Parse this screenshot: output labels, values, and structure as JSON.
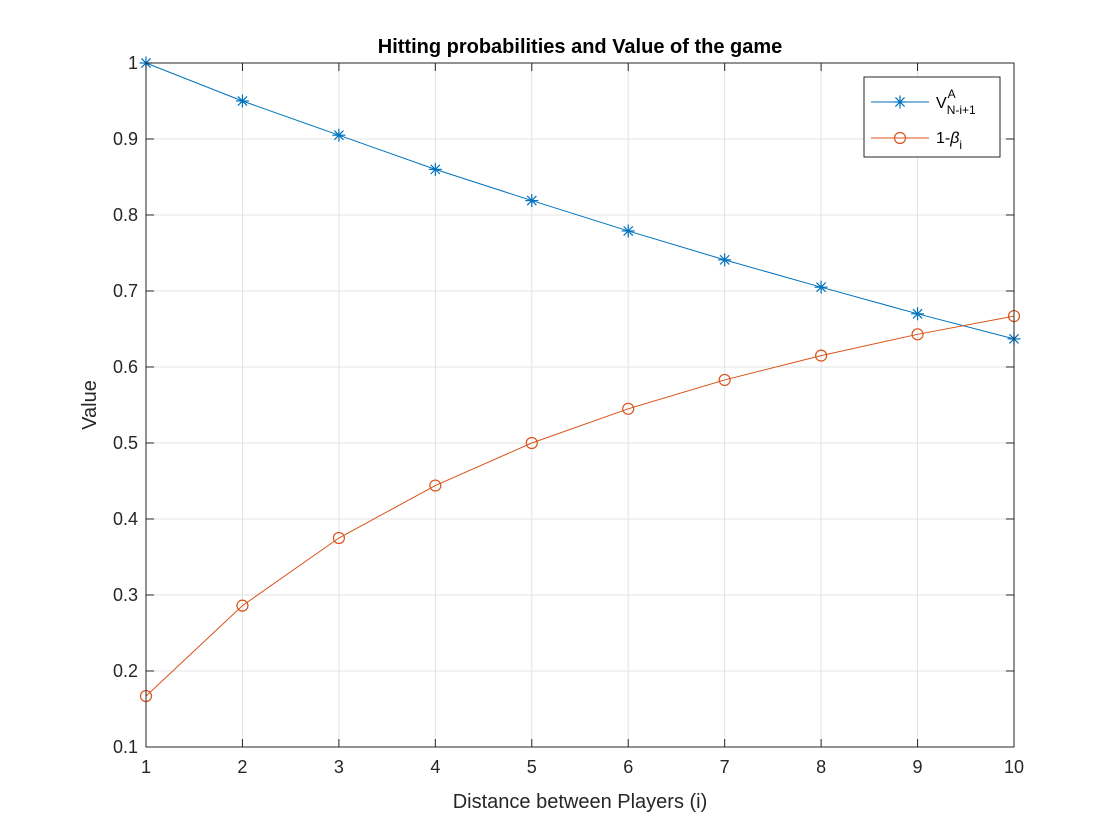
{
  "chart_data": {
    "type": "line",
    "title": "Hitting probabilities and Value of the game",
    "xlabel": "Distance between Players (i)",
    "ylabel": "Value",
    "xlim": [
      1,
      10
    ],
    "ylim": [
      0.1,
      1
    ],
    "x_ticks": [
      "1",
      "2",
      "3",
      "4",
      "5",
      "6",
      "7",
      "8",
      "9",
      "10"
    ],
    "y_ticks": [
      "0.1",
      "0.2",
      "0.3",
      "0.4",
      "0.5",
      "0.6",
      "0.7",
      "0.8",
      "0.9",
      "1"
    ],
    "grid": true,
    "legend_position": "top-right",
    "x": [
      1,
      2,
      3,
      4,
      5,
      6,
      7,
      8,
      9,
      10
    ],
    "series": [
      {
        "name": "V^A_{N-i+1}",
        "legend_main": "V",
        "legend_sup": "A",
        "legend_sub": "N-i+1",
        "marker": "asterisk",
        "color": "#0072BD",
        "values": [
          1.0,
          0.95,
          0.905,
          0.86,
          0.819,
          0.779,
          0.741,
          0.705,
          0.67,
          0.637
        ]
      },
      {
        "name": "1-β_i",
        "legend_main": "1-",
        "legend_greek": "β",
        "legend_sub": "i",
        "marker": "circle",
        "color": "#D95319",
        "values": [
          0.167,
          0.286,
          0.375,
          0.444,
          0.5,
          0.545,
          0.583,
          0.615,
          0.643,
          0.667
        ]
      }
    ]
  }
}
